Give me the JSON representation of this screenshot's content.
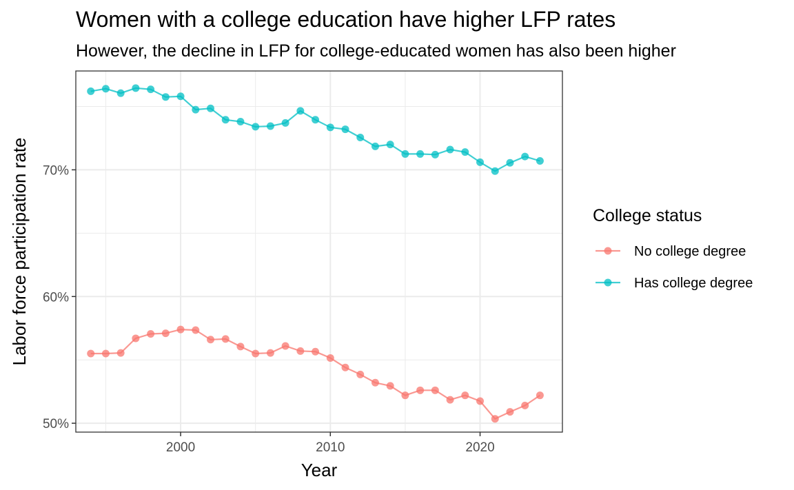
{
  "chart_data": {
    "type": "line",
    "title": "Women with a college education have higher LFP rates",
    "subtitle": "However, the decline in LFP for college-educated women has also been higher",
    "xlabel": "Year",
    "ylabel": "Labor force participation rate",
    "xlim": [
      1993,
      2025.5
    ],
    "ylim": [
      49.3,
      77.8
    ],
    "x_ticks": [
      2000,
      2010,
      2020
    ],
    "x_tick_labels": [
      "2000",
      "2010",
      "2020"
    ],
    "y_ticks": [
      50,
      60,
      70
    ],
    "y_tick_labels": [
      "50%",
      "60%",
      "70%"
    ],
    "grid": true,
    "legend": {
      "title": "College status",
      "position": "right"
    },
    "x": [
      1994,
      1995,
      1996,
      1997,
      1998,
      1999,
      2000,
      2001,
      2002,
      2003,
      2004,
      2005,
      2006,
      2007,
      2008,
      2009,
      2010,
      2011,
      2012,
      2013,
      2014,
      2015,
      2016,
      2017,
      2018,
      2019,
      2020,
      2021,
      2022,
      2023,
      2024
    ],
    "series": [
      {
        "name": "No college degree",
        "color": "#F8766D",
        "values": [
          55.5,
          55.5,
          55.55,
          56.7,
          57.05,
          57.1,
          57.4,
          57.35,
          56.6,
          56.65,
          56.05,
          55.5,
          55.55,
          56.1,
          55.7,
          55.65,
          55.15,
          54.4,
          53.85,
          53.2,
          52.95,
          52.2,
          52.6,
          52.6,
          51.85,
          52.2,
          51.75,
          50.35,
          50.9,
          51.4,
          52.2
        ]
      },
      {
        "name": "Has college degree",
        "color": "#00BFC4",
        "values": [
          76.2,
          76.4,
          76.05,
          76.45,
          76.35,
          75.75,
          75.8,
          74.75,
          74.85,
          73.95,
          73.8,
          73.4,
          73.45,
          73.7,
          74.65,
          73.95,
          73.35,
          73.2,
          72.55,
          71.85,
          72.0,
          71.25,
          71.25,
          71.2,
          71.6,
          71.4,
          70.6,
          69.9,
          70.55,
          71.05,
          70.7
        ]
      }
    ]
  }
}
